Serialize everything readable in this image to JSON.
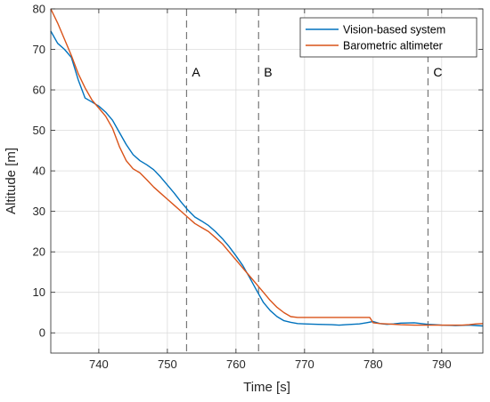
{
  "chart_data": {
    "type": "line",
    "xlabel": "Time [s]",
    "ylabel": "Altitude [m]",
    "xlim": [
      733,
      796
    ],
    "ylim": [
      -5,
      80
    ],
    "xticks": [
      740,
      750,
      760,
      770,
      780,
      790
    ],
    "yticks": [
      0,
      10,
      20,
      30,
      40,
      50,
      60,
      70,
      80
    ],
    "grid": true,
    "legend_position": "top-right",
    "series": [
      {
        "name": "Vision-based system",
        "color": "#0072BD",
        "x": [
          733,
          734,
          735,
          736,
          737,
          738,
          739,
          740,
          741,
          742,
          743,
          744,
          745,
          746,
          747,
          748,
          749,
          750,
          751,
          752,
          753,
          754,
          755,
          756,
          757,
          758,
          759,
          760,
          761,
          762,
          763,
          764,
          765,
          766,
          767,
          768,
          769,
          770,
          772,
          774,
          775,
          776,
          778,
          779,
          780,
          781,
          782,
          783,
          784,
          786,
          787,
          788,
          789,
          790,
          792,
          794,
          795,
          796
        ],
        "y": [
          74.5,
          71.5,
          70,
          68,
          62.5,
          58,
          57,
          56,
          54.5,
          52.5,
          49.5,
          46.5,
          44,
          42.5,
          41.5,
          40.3,
          38.5,
          36.5,
          34.5,
          32.3,
          30.3,
          28.6,
          27.6,
          26.5,
          25,
          23.3,
          21.3,
          19,
          16.6,
          13.6,
          10.5,
          7.5,
          5.5,
          4,
          3,
          2.6,
          2.3,
          2.2,
          2.1,
          2,
          1.9,
          2,
          2.2,
          2.5,
          2.8,
          2.3,
          2.1,
          2.2,
          2.4,
          2.5,
          2.3,
          2.1,
          2,
          1.9,
          1.8,
          1.9,
          1.8,
          1.7
        ]
      },
      {
        "name": "Barometric altimeter",
        "color": "#D95319",
        "x": [
          733,
          734,
          735,
          736,
          737,
          738,
          739,
          740,
          741,
          742,
          743,
          744,
          745,
          746,
          747,
          748,
          749,
          750,
          751,
          752,
          753,
          754,
          755,
          756,
          757,
          758,
          759,
          760,
          761,
          762,
          763,
          764,
          765,
          766,
          767,
          768,
          769,
          770,
          772,
          774,
          776,
          778,
          779,
          779.5,
          780,
          781,
          782,
          784,
          786,
          788,
          790,
          792,
          793,
          794,
          795,
          796
        ],
        "y": [
          80,
          76.5,
          72.5,
          68.5,
          64,
          60.5,
          57.5,
          55.5,
          53.5,
          50.5,
          46,
          42.5,
          40.5,
          39.5,
          37.8,
          36,
          34.5,
          33,
          31.5,
          30,
          28.5,
          27,
          26,
          25,
          23.5,
          22,
          20,
          18,
          16,
          14,
          12,
          10,
          8,
          6.3,
          5,
          4,
          3.8,
          3.8,
          3.8,
          3.8,
          3.8,
          3.8,
          3.8,
          3.8,
          2.5,
          2.3,
          2.2,
          2,
          1.9,
          1.9,
          1.9,
          1.9,
          1.9,
          2,
          2.2,
          2.3
        ]
      }
    ],
    "vertical_markers": [
      {
        "label": "A",
        "x": 752.8
      },
      {
        "label": "B",
        "x": 763.3
      },
      {
        "label": "C",
        "x": 788
      }
    ]
  }
}
